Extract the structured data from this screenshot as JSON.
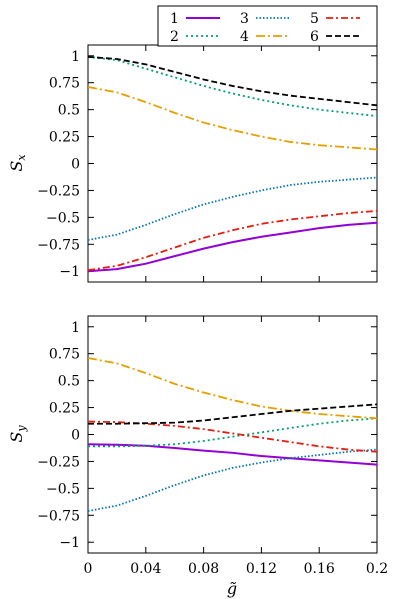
{
  "chart_data": [
    {
      "type": "line",
      "ylabel": "S_x",
      "xlabel": "",
      "xlim": [
        0,
        0.2
      ],
      "ylim": [
        -1.1,
        1.1
      ],
      "xticks": [
        "0",
        "0.04",
        "0.08",
        "0.12",
        "0.16",
        "0.2"
      ],
      "yticks": [
        "−1",
        "−0.75",
        "−0.5",
        "−0.25",
        "0",
        "0.25",
        "0.5",
        "0.75",
        "1"
      ],
      "xtick_values": [
        0,
        0.04,
        0.08,
        0.12,
        0.16,
        0.2
      ],
      "ytick_values": [
        -1,
        -0.75,
        -0.5,
        -0.25,
        0,
        0.25,
        0.5,
        0.75,
        1
      ],
      "x": [
        0,
        0.02,
        0.04,
        0.06,
        0.08,
        0.1,
        0.12,
        0.14,
        0.16,
        0.18,
        0.2
      ],
      "series": [
        {
          "name": "1",
          "color": "#9400d3",
          "dash": "solid",
          "values": [
            -1.0,
            -0.98,
            -0.93,
            -0.86,
            -0.79,
            -0.73,
            -0.68,
            -0.64,
            -0.6,
            -0.57,
            -0.55
          ]
        },
        {
          "name": "2",
          "color": "#009e73",
          "dash": "dotted-fine",
          "values": [
            0.99,
            0.96,
            0.88,
            0.8,
            0.72,
            0.65,
            0.59,
            0.54,
            0.5,
            0.47,
            0.44
          ]
        },
        {
          "name": "3",
          "color": "#0072b2",
          "dash": "dotted",
          "values": [
            -0.71,
            -0.66,
            -0.57,
            -0.47,
            -0.38,
            -0.31,
            -0.25,
            -0.2,
            -0.17,
            -0.15,
            -0.13
          ]
        },
        {
          "name": "4",
          "color": "#e69f00",
          "dash": "dashdot",
          "values": [
            0.71,
            0.66,
            0.57,
            0.47,
            0.38,
            0.31,
            0.25,
            0.2,
            0.17,
            0.15,
            0.13
          ]
        },
        {
          "name": "5",
          "color": "#e51e10",
          "dash": "dashdot2",
          "values": [
            -0.99,
            -0.95,
            -0.87,
            -0.78,
            -0.69,
            -0.62,
            -0.56,
            -0.52,
            -0.49,
            -0.46,
            -0.44
          ]
        },
        {
          "name": "6",
          "color": "#000000",
          "dash": "dashed",
          "values": [
            0.99,
            0.97,
            0.92,
            0.85,
            0.78,
            0.72,
            0.67,
            0.63,
            0.6,
            0.57,
            0.54
          ]
        }
      ]
    },
    {
      "type": "line",
      "ylabel": "S_y",
      "xlabel": "g̃",
      "xlim": [
        0,
        0.2
      ],
      "ylim": [
        -1.1,
        1.1
      ],
      "xticks": [
        "0",
        "0.04",
        "0.08",
        "0.12",
        "0.16",
        "0.2"
      ],
      "yticks": [
        "−1",
        "−0.75",
        "−0.5",
        "−0.25",
        "0",
        "0.25",
        "0.5",
        "0.75",
        "1"
      ],
      "xtick_values": [
        0,
        0.04,
        0.08,
        0.12,
        0.16,
        0.2
      ],
      "ytick_values": [
        -1,
        -0.75,
        -0.5,
        -0.25,
        0,
        0.25,
        0.5,
        0.75,
        1
      ],
      "x": [
        0,
        0.02,
        0.04,
        0.06,
        0.08,
        0.1,
        0.12,
        0.14,
        0.16,
        0.18,
        0.2
      ],
      "series": [
        {
          "name": "1",
          "color": "#9400d3",
          "dash": "solid",
          "values": [
            -0.09,
            -0.095,
            -0.105,
            -0.125,
            -0.15,
            -0.17,
            -0.2,
            -0.22,
            -0.24,
            -0.26,
            -0.28
          ]
        },
        {
          "name": "2",
          "color": "#009e73",
          "dash": "dotted-fine",
          "values": [
            -0.11,
            -0.11,
            -0.105,
            -0.09,
            -0.06,
            -0.02,
            0.02,
            0.06,
            0.1,
            0.13,
            0.15
          ]
        },
        {
          "name": "3",
          "color": "#0072b2",
          "dash": "dotted",
          "values": [
            -0.71,
            -0.66,
            -0.57,
            -0.47,
            -0.38,
            -0.31,
            -0.26,
            -0.22,
            -0.19,
            -0.16,
            -0.14
          ]
        },
        {
          "name": "4",
          "color": "#e69f00",
          "dash": "dashdot",
          "values": [
            0.71,
            0.66,
            0.57,
            0.47,
            0.39,
            0.32,
            0.26,
            0.22,
            0.19,
            0.17,
            0.15
          ]
        },
        {
          "name": "5",
          "color": "#e51e10",
          "dash": "dashdot2",
          "values": [
            0.12,
            0.115,
            0.1,
            0.08,
            0.05,
            0.01,
            -0.03,
            -0.07,
            -0.11,
            -0.14,
            -0.16
          ]
        },
        {
          "name": "6",
          "color": "#000000",
          "dash": "dashed",
          "values": [
            0.1,
            0.1,
            0.105,
            0.11,
            0.13,
            0.16,
            0.19,
            0.22,
            0.24,
            0.26,
            0.28
          ]
        }
      ]
    }
  ],
  "legend": {
    "placement": "top-right",
    "entries": [
      "1",
      "2",
      "3",
      "4",
      "5",
      "6"
    ]
  }
}
